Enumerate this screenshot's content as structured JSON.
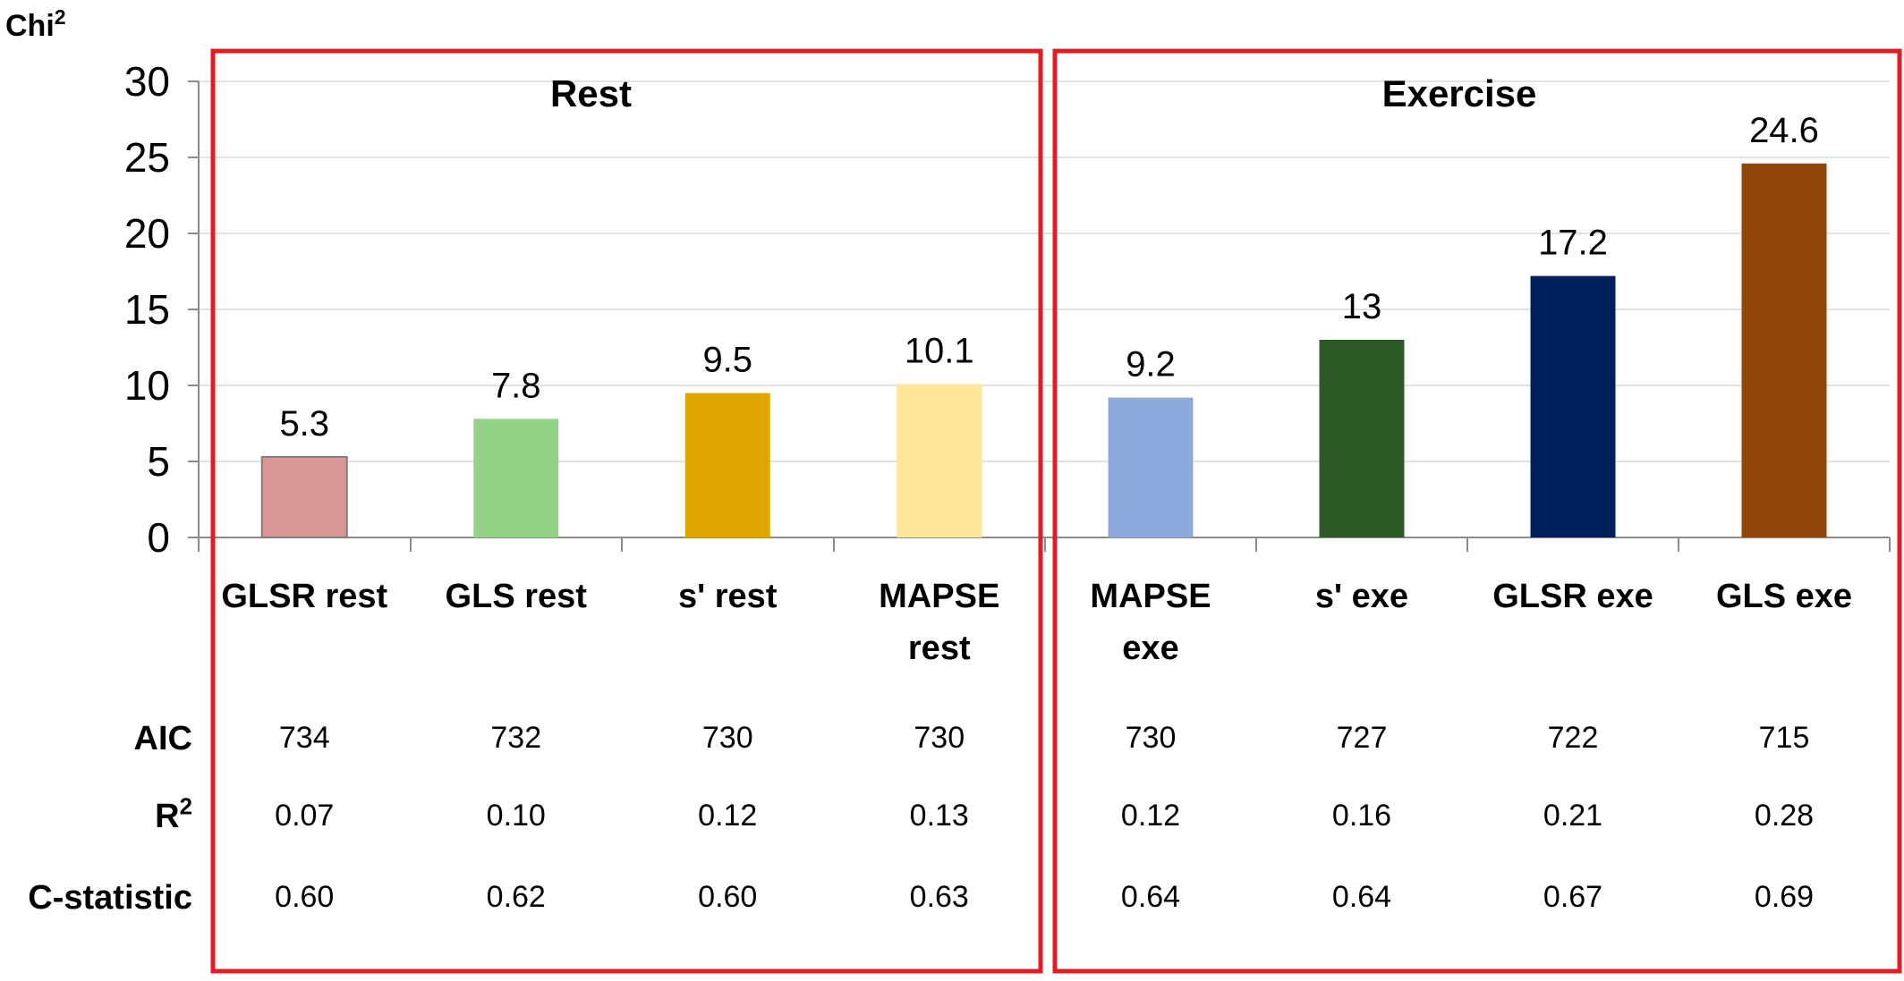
{
  "chart_data": {
    "type": "bar",
    "ylabel": "Chi",
    "ylabel_superscript": "2",
    "ylim": [
      0,
      30
    ],
    "yticks": [
      0,
      5,
      10,
      15,
      20,
      25,
      30
    ],
    "grid": true,
    "groups": [
      {
        "name": "Rest",
        "border_color": "#e51b23"
      },
      {
        "name": "Exercise",
        "border_color": "#e51b23"
      }
    ],
    "categories": [
      {
        "label_lines": [
          "GLSR rest"
        ],
        "group": 0,
        "value": 5.3,
        "value_label": "5.3",
        "color": "#d99694"
      },
      {
        "label_lines": [
          "GLS rest"
        ],
        "group": 0,
        "value": 7.8,
        "value_label": "7.8",
        "color": "#94d385"
      },
      {
        "label_lines": [
          "s' rest"
        ],
        "group": 0,
        "value": 9.5,
        "value_label": "9.5",
        "color": "#e0a500"
      },
      {
        "label_lines": [
          "MAPSE",
          "rest"
        ],
        "group": 0,
        "value": 10.1,
        "value_label": "10.1",
        "color": "#ffe699"
      },
      {
        "label_lines": [
          "MAPSE",
          "exe"
        ],
        "group": 1,
        "value": 9.2,
        "value_label": "9.2",
        "color": "#8eaadc"
      },
      {
        "label_lines": [
          "s' exe"
        ],
        "group": 1,
        "value": 13,
        "value_label": "13",
        "color": "#2c5a27"
      },
      {
        "label_lines": [
          "GLSR exe"
        ],
        "group": 1,
        "value": 17.2,
        "value_label": "17.2",
        "color": "#00205c"
      },
      {
        "label_lines": [
          "GLS  exe"
        ],
        "group": 1,
        "value": 24.6,
        "value_label": "24.6",
        "color": "#914709"
      }
    ],
    "table": {
      "rows": [
        {
          "label": "AIC",
          "label_superscript": "",
          "values": [
            "734",
            "732",
            "730",
            "730",
            "730",
            "727",
            "722",
            "715"
          ]
        },
        {
          "label": "R",
          "label_superscript": "2",
          "values": [
            "0.07",
            "0.10",
            "0.12",
            "0.13",
            "0.12",
            "0.16",
            "0.21",
            "0.28"
          ]
        },
        {
          "label": "C-statistic",
          "label_superscript": "",
          "values": [
            "0.60",
            "0.62",
            "0.60",
            "0.63",
            "0.64",
            "0.64",
            "0.67",
            "0.69"
          ]
        }
      ]
    }
  }
}
